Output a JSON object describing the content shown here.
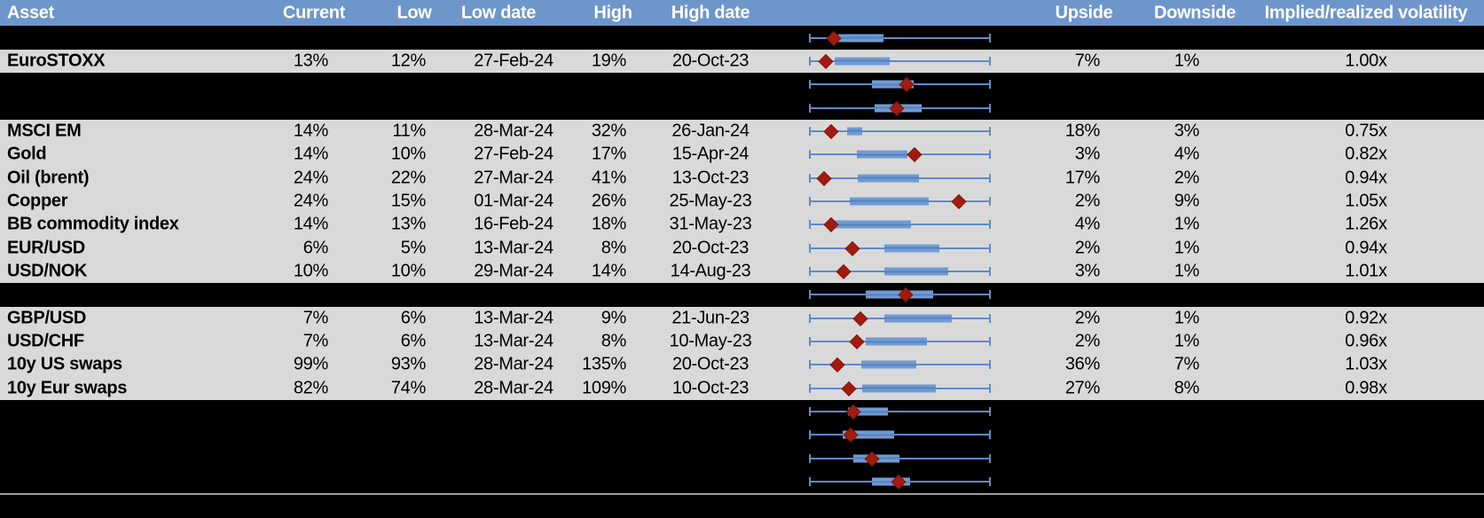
{
  "colors": {
    "header_bg": "#6d96ca",
    "header_text": "#ffffff",
    "row_bg": "#d9d9d9",
    "hidden_row_bg": "#000000",
    "box_fill": "#6f9bd5",
    "whisker": "#5f8bc7",
    "marker": "#a21b0f",
    "separator_line": "#9b9b9b",
    "body_text": "#000000"
  },
  "chart_data": {
    "type": "table+boxplot",
    "columns": [
      "Asset",
      "Current",
      "Low",
      "Low date",
      "High",
      "High date",
      "Upside",
      "Downside",
      "Implied/realized volatility"
    ],
    "plot_axis": {
      "description": "Horizontal box-whisker per row; whiskers span the full low-to-high 12m range; box = interquartile range; red diamond = current level",
      "units": "percent of whisker span (0 = left whisker, 100 = right whisker)"
    },
    "rows": [
      {
        "type": "hidden",
        "plot": {
          "box_start": 16.0,
          "box_end": 41.2,
          "marker": 13.8
        }
      },
      {
        "type": "data",
        "label": "EuroSTOXX",
        "current": "13%",
        "low": "12%",
        "low_date": "27-Feb-24",
        "high": "19%",
        "high_date": "20-Oct-23",
        "upside": "7%",
        "downside": "1%",
        "implied_realized": "1.00x",
        "plot": {
          "box_start": 14.1,
          "box_end": 44.4,
          "marker": 9.5
        }
      },
      {
        "type": "hidden",
        "plot": {
          "box_start": 34.6,
          "box_end": 57.5,
          "marker": 53.9
        }
      },
      {
        "type": "hidden",
        "plot": {
          "box_start": 35.9,
          "box_end": 62.0,
          "marker": 48.3
        }
      },
      {
        "type": "data",
        "label": "MSCI EM",
        "current": "14%",
        "low": "11%",
        "low_date": "28-Mar-24",
        "high": "32%",
        "high_date": "26-Jan-24",
        "upside": "18%",
        "downside": "3%",
        "implied_realized": "0.75x",
        "plot": {
          "box_start": 20.8,
          "box_end": 29.4,
          "marker": 12.3
        }
      },
      {
        "type": "data",
        "label": "Gold",
        "current": "14%",
        "low": "10%",
        "low_date": "27-Feb-24",
        "high": "17%",
        "high_date": "15-Apr-24",
        "upside": "3%",
        "downside": "4%",
        "implied_realized": "0.82x",
        "plot": {
          "box_start": 26.5,
          "box_end": 54.2,
          "marker": 57.9
        }
      },
      {
        "type": "data",
        "label": "Oil (brent)",
        "current": "24%",
        "low": "22%",
        "low_date": "27-Mar-24",
        "high": "41%",
        "high_date": "13-Oct-23",
        "upside": "17%",
        "downside": "2%",
        "implied_realized": "0.94x",
        "plot": {
          "box_start": 26.8,
          "box_end": 60.4,
          "marker": 8.2
        }
      },
      {
        "type": "data",
        "label": "Copper",
        "current": "24%",
        "low": "15%",
        "low_date": "01-Mar-24",
        "high": "26%",
        "high_date": "25-May-23",
        "upside": "2%",
        "downside": "9%",
        "implied_realized": "1.05x",
        "plot": {
          "box_start": 22.4,
          "box_end": 66.1,
          "marker": 82.4
        }
      },
      {
        "type": "data",
        "label": "BB commodity index",
        "current": "14%",
        "low": "13%",
        "low_date": "16-Feb-24",
        "high": "18%",
        "high_date": "31-May-23",
        "upside": "4%",
        "downside": "1%",
        "implied_realized": "1.26x",
        "plot": {
          "box_start": 12.1,
          "box_end": 56.1,
          "marker": 12.1
        }
      },
      {
        "type": "data",
        "label": "EUR/USD",
        "current": "6%",
        "low": "5%",
        "low_date": "13-Mar-24",
        "high": "8%",
        "high_date": "20-Oct-23",
        "upside": "2%",
        "downside": "1%",
        "implied_realized": "0.94x",
        "plot": {
          "box_start": 41.7,
          "box_end": 71.6,
          "marker": 24.1
        }
      },
      {
        "type": "data",
        "label": "USD/NOK",
        "current": "10%",
        "low": "10%",
        "low_date": "29-Mar-24",
        "high": "14%",
        "high_date": "14-Aug-23",
        "upside": "3%",
        "downside": "1%",
        "implied_realized": "1.01x",
        "plot": {
          "box_start": 41.7,
          "box_end": 76.5,
          "marker": 19.2
        }
      },
      {
        "type": "hidden",
        "plot": {
          "box_start": 31.4,
          "box_end": 68.1,
          "marker": 53.1
        }
      },
      {
        "type": "data",
        "label": "GBP/USD",
        "current": "7%",
        "low": "6%",
        "low_date": "13-Mar-24",
        "high": "9%",
        "high_date": "21-Jun-23",
        "upside": "2%",
        "downside": "1%",
        "implied_realized": "0.92x",
        "plot": {
          "box_start": 41.7,
          "box_end": 78.6,
          "marker": 28.5
        }
      },
      {
        "type": "data",
        "label": "USD/CHF",
        "current": "7%",
        "low": "6%",
        "low_date": "13-Mar-24",
        "high": "8%",
        "high_date": "10-May-23",
        "upside": "2%",
        "downside": "1%",
        "implied_realized": "0.96x",
        "plot": {
          "box_start": 31.4,
          "box_end": 65.1,
          "marker": 26.2
        }
      },
      {
        "type": "data",
        "label": "10y US swaps",
        "current": "99%",
        "low": "93%",
        "low_date": "28-Mar-24",
        "high": "135%",
        "high_date": "20-Oct-23",
        "upside": "36%",
        "downside": "7%",
        "implied_realized": "1.03x",
        "plot": {
          "box_start": 28.9,
          "box_end": 58.8,
          "marker": 15.6
        }
      },
      {
        "type": "data",
        "label": "10y Eur swaps",
        "current": "82%",
        "low": "74%",
        "low_date": "28-Mar-24",
        "high": "109%",
        "high_date": "10-Oct-23",
        "upside": "27%",
        "downside": "8%",
        "implied_realized": "0.98x",
        "plot": {
          "box_start": 29.2,
          "box_end": 69.8,
          "marker": 21.9
        }
      },
      {
        "type": "hidden",
        "plot": {
          "box_start": 21.3,
          "box_end": 43.4,
          "marker": 24.5
        }
      },
      {
        "type": "hidden",
        "plot": {
          "box_start": 18.3,
          "box_end": 46.8,
          "marker": 22.9
        }
      },
      {
        "type": "hidden",
        "plot": {
          "box_start": 24.5,
          "box_end": 49.6,
          "marker": 34.6
        }
      },
      {
        "type": "hidden",
        "plot": {
          "box_start": 34.6,
          "box_end": 55.5,
          "marker": 49.3
        }
      }
    ]
  }
}
